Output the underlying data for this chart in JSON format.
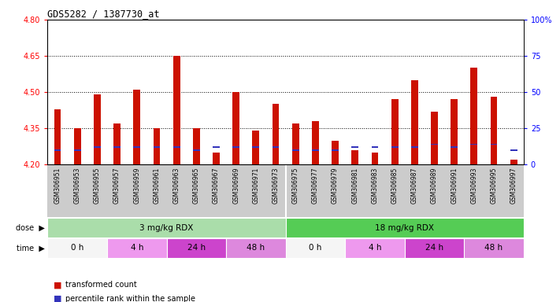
{
  "title": "GDS5282 / 1387730_at",
  "samples": [
    "GSM306951",
    "GSM306953",
    "GSM306955",
    "GSM306957",
    "GSM306959",
    "GSM306961",
    "GSM306963",
    "GSM306965",
    "GSM306967",
    "GSM306969",
    "GSM306971",
    "GSM306973",
    "GSM306975",
    "GSM306977",
    "GSM306979",
    "GSM306981",
    "GSM306983",
    "GSM306985",
    "GSM306987",
    "GSM306989",
    "GSM306991",
    "GSM306993",
    "GSM306995",
    "GSM306997"
  ],
  "red_values": [
    4.43,
    4.35,
    4.49,
    4.37,
    4.51,
    4.35,
    4.65,
    4.35,
    4.25,
    4.5,
    4.34,
    4.45,
    4.37,
    4.38,
    4.3,
    4.26,
    4.25,
    4.47,
    4.55,
    4.42,
    4.47,
    4.6,
    4.48,
    4.22
  ],
  "blue_percentiles": [
    10,
    10,
    12,
    12,
    12,
    12,
    12,
    10,
    12,
    12,
    12,
    12,
    10,
    10,
    10,
    12,
    12,
    12,
    12,
    14,
    12,
    14,
    14,
    10
  ],
  "y_min": 4.2,
  "y_max": 4.8,
  "y_ticks": [
    4.2,
    4.35,
    4.5,
    4.65,
    4.8
  ],
  "right_y_ticks": [
    0,
    25,
    50,
    75,
    100
  ],
  "right_y_labels": [
    "0",
    "25",
    "50",
    "75",
    "100%"
  ],
  "bar_color": "#cc1100",
  "blue_color": "#3333bb",
  "dose_groups": [
    {
      "label": "3 mg/kg RDX",
      "start": 0,
      "end": 12,
      "color": "#aaddaa"
    },
    {
      "label": "18 mg/kg RDX",
      "start": 12,
      "end": 24,
      "color": "#55cc55"
    }
  ],
  "time_groups": [
    {
      "label": "0 h",
      "start": 0,
      "end": 3,
      "color": "#f5f5f5"
    },
    {
      "label": "4 h",
      "start": 3,
      "end": 6,
      "color": "#ee99ee"
    },
    {
      "label": "24 h",
      "start": 6,
      "end": 9,
      "color": "#cc44cc"
    },
    {
      "label": "48 h",
      "start": 9,
      "end": 12,
      "color": "#dd88dd"
    },
    {
      "label": "0 h",
      "start": 12,
      "end": 15,
      "color": "#f5f5f5"
    },
    {
      "label": "4 h",
      "start": 15,
      "end": 18,
      "color": "#ee99ee"
    },
    {
      "label": "24 h",
      "start": 18,
      "end": 21,
      "color": "#cc44cc"
    },
    {
      "label": "48 h",
      "start": 21,
      "end": 24,
      "color": "#dd88dd"
    }
  ],
  "legend_items": [
    {
      "label": "transformed count",
      "color": "#cc1100"
    },
    {
      "label": "percentile rank within the sample",
      "color": "#3333bb"
    }
  ],
  "xtick_bg": "#cccccc",
  "plot_bg": "#ffffff",
  "grid_color": "#000000",
  "bar_width": 0.35
}
